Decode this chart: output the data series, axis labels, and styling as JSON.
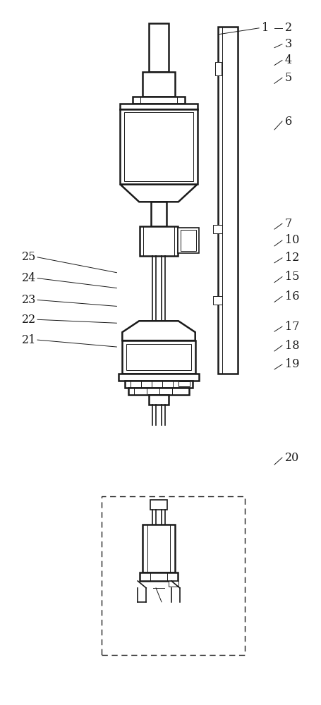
{
  "bg_color": "#ffffff",
  "line_color": "#1a1a1a",
  "label_color": "#1a1a1a",
  "fig_width": 4.55,
  "fig_height": 10.0
}
